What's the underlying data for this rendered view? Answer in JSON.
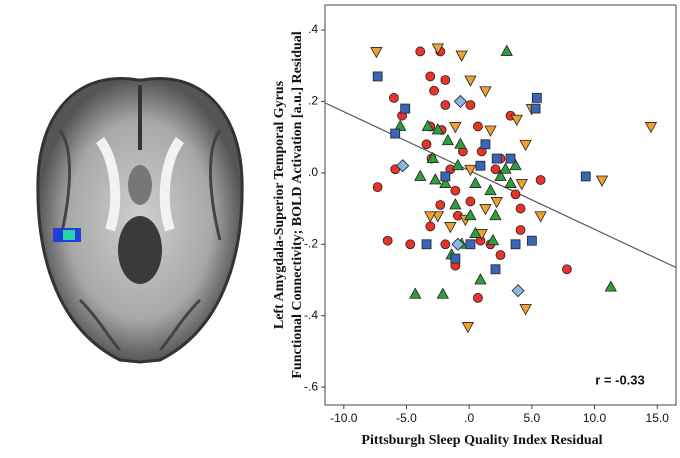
{
  "chart_data": {
    "type": "scatter",
    "x_label": "Pittsburgh Sleep Quality Index Residual",
    "y_label": [
      "Left Amygdala-Superior Temporal Gyrus",
      "Functional Connectivity; BOLD Activation [a.u.] Residual"
    ],
    "annotation": "r = -0.33",
    "xlim": [
      -11.5,
      16.5
    ],
    "ylim": [
      -0.65,
      0.47
    ],
    "xticks": [
      {
        "value": -10,
        "label": "-10.0"
      },
      {
        "value": -5,
        "label": "-5.0"
      },
      {
        "value": 0,
        "label": ".0"
      },
      {
        "value": 5,
        "label": "5.0"
      },
      {
        "value": 10,
        "label": "10.0"
      },
      {
        "value": 15,
        "label": "15.0"
      }
    ],
    "yticks": [
      {
        "value": 0.4,
        "label": ".4"
      },
      {
        "value": 0.2,
        "label": ".2"
      },
      {
        "value": 0,
        "label": ".0"
      },
      {
        "value": -0.2,
        "label": "-.2"
      },
      {
        "value": -0.4,
        "label": "-.4"
      },
      {
        "value": -0.6,
        "label": "-.6"
      }
    ],
    "fit_line": {
      "x": [
        -11.5,
        16.5
      ],
      "y": [
        0.196,
        -0.265
      ],
      "color": "#555555"
    },
    "series": [
      {
        "marker": "circle",
        "color": "#e8332a",
        "x": [
          -6.0,
          -5.35,
          -5.9,
          -7.3,
          -6.5,
          -4.7,
          -3.9,
          -3.1,
          -2.8,
          -1.9,
          -2.2,
          -3.4,
          -3.0,
          -1.5,
          -1.1,
          -0.5,
          0.1,
          0.7,
          1.0,
          2.1,
          2.5,
          3.3,
          3.7,
          4.1,
          5.7,
          0.1,
          -0.9,
          -2.3,
          -3.1,
          -1.9,
          0.9,
          2.5,
          4.1,
          -1.1,
          0.7,
          1.7,
          7.8,
          -3.1,
          -2.3,
          -1.9
        ],
        "values": [
          0.21,
          0.16,
          0.01,
          -0.04,
          -0.19,
          -0.2,
          0.34,
          0.27,
          0.23,
          0.19,
          0.12,
          0.08,
          0.04,
          0.01,
          -0.05,
          0.06,
          0.19,
          0.13,
          0.06,
          0.01,
          0.04,
          0.16,
          -0.06,
          -0.1,
          -0.02,
          -0.08,
          -0.12,
          -0.09,
          -0.15,
          -0.2,
          -0.19,
          -0.23,
          -0.16,
          -0.26,
          -0.35,
          -0.2,
          -0.27,
          0.13,
          0.34,
          0.26
        ]
      },
      {
        "marker": "triangle-down",
        "color": "#f0a030",
        "x": [
          -7.4,
          -2.5,
          -0.6,
          0.1,
          1.3,
          5.0,
          4.5,
          -1.1,
          1.7,
          0.1,
          -1.5,
          -0.3,
          1.0,
          3.8,
          5.7,
          4.2,
          1.3,
          -2.5,
          4.5,
          -0.1,
          10.6,
          14.5,
          -3.1,
          2.2
        ],
        "values": [
          0.34,
          0.35,
          0.33,
          0.26,
          0.23,
          0.18,
          0.08,
          0.13,
          0.12,
          0.01,
          -0.15,
          -0.13,
          -0.17,
          0.15,
          -0.12,
          -0.03,
          -0.1,
          -0.12,
          -0.38,
          -0.43,
          -0.02,
          0.13,
          -0.12,
          -0.08
        ]
      },
      {
        "marker": "triangle-up",
        "color": "#2e9e3e",
        "x": [
          3.0,
          -5.5,
          -3.3,
          -2.5,
          -1.7,
          -0.7,
          -3.9,
          -2.7,
          -1.9,
          0.5,
          1.7,
          2.5,
          3.3,
          3.7,
          -1.1,
          0.1,
          2.1,
          -0.6,
          0.5,
          1.9,
          -2.1,
          0.9,
          -1.4,
          11.3,
          -4.3,
          2.9,
          -2.9,
          -0.9
        ],
        "values": [
          0.34,
          0.13,
          0.13,
          0.12,
          0.09,
          0.08,
          -0.01,
          -0.02,
          -0.03,
          -0.03,
          -0.05,
          -0.01,
          -0.03,
          0.02,
          -0.09,
          -0.12,
          -0.12,
          -0.2,
          -0.17,
          -0.19,
          -0.34,
          -0.3,
          -0.23,
          -0.32,
          -0.34,
          0.01,
          0.04,
          0.02
        ]
      },
      {
        "marker": "square",
        "color": "#3a66b8",
        "x": [
          -7.3,
          -5.1,
          -5.9,
          5.4,
          5.3,
          -3.4,
          -1.1,
          0.1,
          2.1,
          3.7,
          5.0,
          9.3,
          2.2,
          0.9,
          3.3,
          1.3,
          -1.9
        ],
        "values": [
          0.27,
          0.18,
          0.11,
          0.21,
          0.18,
          -0.2,
          -0.24,
          -0.2,
          -0.27,
          -0.2,
          -0.19,
          -0.01,
          0.04,
          0.02,
          0.04,
          0.08,
          -0.01
        ]
      },
      {
        "marker": "diamond",
        "color": "#8ab8e6",
        "x": [
          -0.7,
          -5.3,
          -0.9,
          3.9
        ],
        "values": [
          0.2,
          0.02,
          -0.2,
          -0.33
        ]
      }
    ]
  }
}
